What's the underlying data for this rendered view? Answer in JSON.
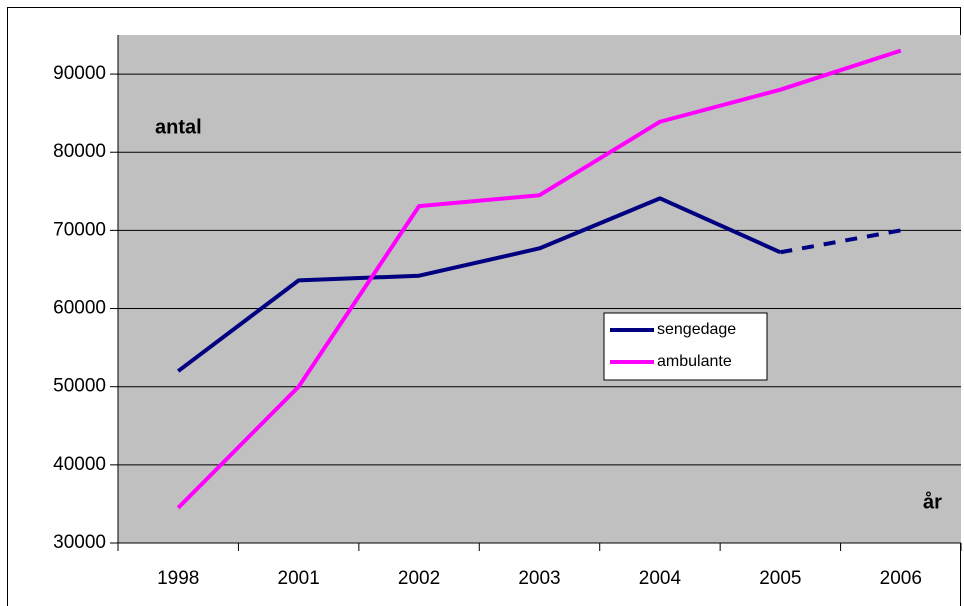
{
  "chart_data": {
    "type": "line",
    "categories": [
      "1998",
      "2001",
      "2002",
      "2003",
      "2004",
      "2005",
      "2006"
    ],
    "series": [
      {
        "name": "sengedage",
        "color": "#000080",
        "values": [
          52000,
          63600,
          64200,
          67700,
          74100,
          67200,
          70000
        ],
        "last_segment_style": "dashed"
      },
      {
        "name": "ambulante",
        "color": "#ff00ff",
        "values": [
          34500,
          50000,
          73100,
          74500,
          83900,
          88000,
          93000
        ]
      }
    ],
    "ylim": [
      30000,
      95000
    ],
    "yticks": [
      30000,
      40000,
      50000,
      60000,
      70000,
      80000,
      90000
    ],
    "grid": true,
    "plot_background": "#c0c0c0",
    "annotations": [
      "antal",
      "år"
    ],
    "legend": "center-right"
  }
}
